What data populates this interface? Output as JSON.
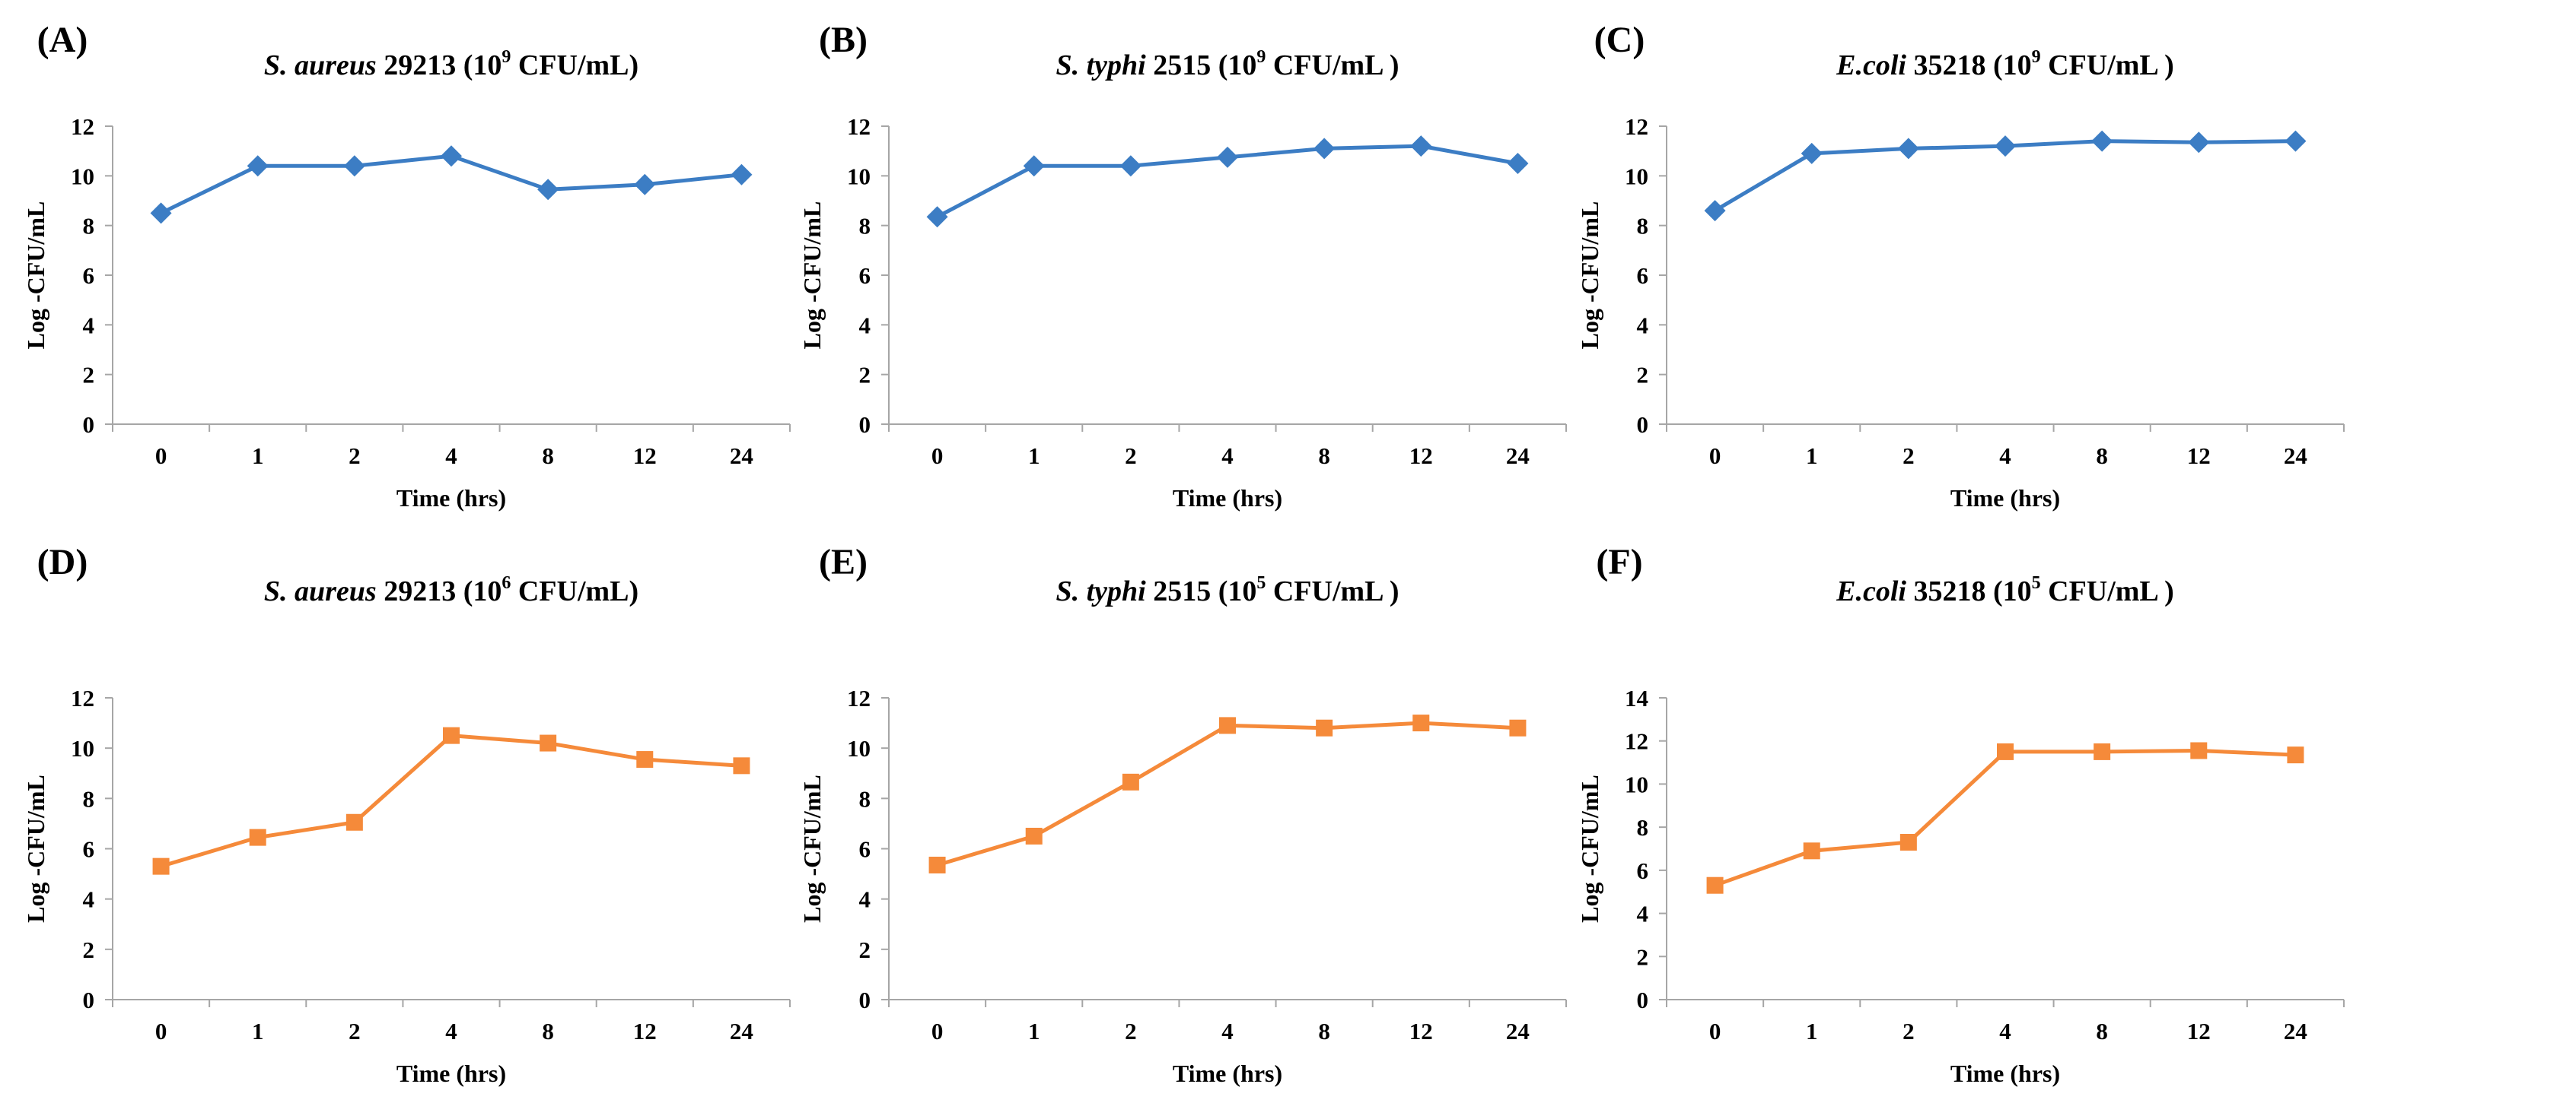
{
  "figure": {
    "panels": [
      {
        "panel_label": "(A)",
        "title": {
          "italic": "S. aureus",
          "pre": " 29213 (10",
          "sup": "9",
          "post": " CFU/mL)"
        },
        "color": "#3c7dc4",
        "marker": "diamond"
      },
      {
        "panel_label": "(B)",
        "title": {
          "italic": "S. typhi",
          "pre": " 2515 (10",
          "sup": "9",
          "post": " CFU/mL )"
        },
        "color": "#3c7dc4",
        "marker": "diamond"
      },
      {
        "panel_label": "(C)",
        "title": {
          "italic": "E.coli",
          "pre": " 35218 (10",
          "sup": "9",
          "post": " CFU/mL )"
        },
        "color": "#3c7dc4",
        "marker": "diamond"
      },
      {
        "panel_label": "(D)",
        "title": {
          "italic": "S. aureus",
          "pre": " 29213 (10",
          "sup": "6",
          "post": " CFU/mL)"
        },
        "color": "#f58a3a",
        "marker": "square"
      },
      {
        "panel_label": "(E)",
        "title": {
          "italic": "S. typhi",
          "pre": " 2515 (10",
          "sup": "5",
          "post": " CFU/mL )"
        },
        "color": "#f58a3a",
        "marker": "square"
      },
      {
        "panel_label": "(F)",
        "title": {
          "italic": "E.coli",
          "pre": " 35218 (10",
          "sup": "5",
          "post": " CFU/mL )"
        },
        "color": "#f58a3a",
        "marker": "square"
      }
    ]
  },
  "chart_data": [
    {
      "type": "line",
      "title": "S. aureus 29213 (10^9 CFU/mL)",
      "xlabel": "Time (hrs)",
      "ylabel": "Log -CFU/mL",
      "categories": [
        "0",
        "1",
        "2",
        "4",
        "8",
        "12",
        "24"
      ],
      "values": [
        8.5,
        10.4,
        10.4,
        10.8,
        9.45,
        9.65,
        10.05
      ],
      "ylim": [
        0,
        12
      ],
      "yticks": [
        "0",
        "2",
        "4",
        "6",
        "8",
        "10",
        "12"
      ]
    },
    {
      "type": "line",
      "title": "S. typhi 2515 (10^9 CFU/mL )",
      "xlabel": "Time (hrs)",
      "ylabel": "Log -CFU/mL",
      "categories": [
        "0",
        "1",
        "2",
        "4",
        "8",
        "12",
        "24"
      ],
      "values": [
        8.35,
        10.4,
        10.4,
        10.75,
        11.1,
        11.2,
        10.5
      ],
      "ylim": [
        0,
        12
      ],
      "yticks": [
        "0",
        "2",
        "4",
        "6",
        "8",
        "10",
        "12"
      ]
    },
    {
      "type": "line",
      "title": "E.coli 35218 (10^9 CFU/mL )",
      "xlabel": "Time (hrs)",
      "ylabel": "Log -CFU/mL",
      "categories": [
        "0",
        "1",
        "2",
        "4",
        "8",
        "12",
        "24"
      ],
      "values": [
        8.6,
        10.9,
        11.1,
        11.2,
        11.4,
        11.35,
        11.4
      ],
      "ylim": [
        0,
        12
      ],
      "yticks": [
        "0",
        "2",
        "4",
        "6",
        "8",
        "10",
        "12"
      ]
    },
    {
      "type": "line",
      "title": "S. aureus 29213 (10^6 CFU/mL)",
      "xlabel": "Time (hrs)",
      "ylabel": "Log -CFU/mL",
      "categories": [
        "0",
        "1",
        "2",
        "4",
        "8",
        "12",
        "24"
      ],
      "values": [
        5.3,
        6.45,
        7.05,
        10.5,
        10.2,
        9.55,
        9.3
      ],
      "ylim": [
        0,
        12
      ],
      "yticks": [
        "0",
        "2",
        "4",
        "6",
        "8",
        "10",
        "12"
      ]
    },
    {
      "type": "line",
      "title": "S. typhi 2515 (10^5 CFU/mL )",
      "xlabel": "Time (hrs)",
      "ylabel": "Log -CFU/mL",
      "categories": [
        "0",
        "1",
        "2",
        "4",
        "8",
        "12",
        "24"
      ],
      "values": [
        5.35,
        6.5,
        8.65,
        10.9,
        10.8,
        11.0,
        10.8
      ],
      "ylim": [
        0,
        12
      ],
      "yticks": [
        "0",
        "2",
        "4",
        "6",
        "8",
        "10",
        "12"
      ]
    },
    {
      "type": "line",
      "title": "E.coli 35218 (10^5 CFU/mL )",
      "xlabel": "Time (hrs)",
      "ylabel": "Log -CFU/mL",
      "categories": [
        "0",
        "1",
        "2",
        "4",
        "8",
        "12",
        "24"
      ],
      "values": [
        5.3,
        6.9,
        7.3,
        11.5,
        11.5,
        11.55,
        11.35
      ],
      "ylim": [
        0,
        14
      ],
      "yticks": [
        "0",
        "2",
        "4",
        "6",
        "8",
        "10",
        "12",
        "14"
      ]
    }
  ]
}
